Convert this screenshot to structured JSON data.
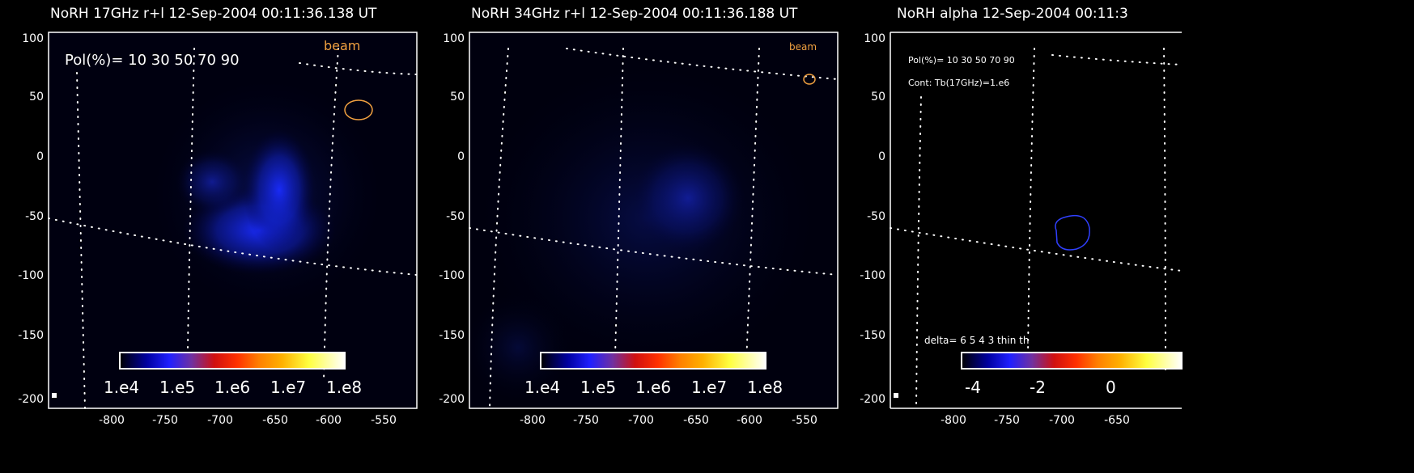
{
  "panels": [
    {
      "title": "NoRH 17GHz r+l 12-Sep-2004 00:11:36.138 UT",
      "beam_label": "beam",
      "pol_label": "Pol(%)= 10 30 50 70 90",
      "colorbar_labels": [
        "1.e4",
        "1.e5",
        "1.e6",
        "1.e7",
        "1.e8"
      ]
    },
    {
      "title": "NoRH 34GHz r+l 12-Sep-2004 00:11:36.188 UT",
      "beam_label": "beam",
      "colorbar_labels": [
        "1.e4",
        "1.e5",
        "1.e6",
        "1.e7",
        "1.e8"
      ]
    },
    {
      "title": "NoRH alpha  12-Sep-2004 00:11:3",
      "pol_label": "Pol(%)= 10 30 50 70 90",
      "cont_label": "Cont: Tb(17GHz)=1.e6",
      "delta_label": "delta= 6    5    4    3    thin    th",
      "colorbar_labels": [
        "-4",
        "-2",
        "0"
      ]
    }
  ],
  "y_ticks": [
    "100",
    "50",
    "0",
    "-50",
    "-100",
    "-150",
    "-200"
  ],
  "x_ticks": [
    "-800",
    "-750",
    "-700",
    "-650",
    "-600",
    "-550"
  ],
  "colors": {
    "background": "#000000",
    "emission": "#1a2cff",
    "beam_contour": "#f0a040",
    "alpha_contour": "#3040ff",
    "axis": "#ffffff"
  }
}
